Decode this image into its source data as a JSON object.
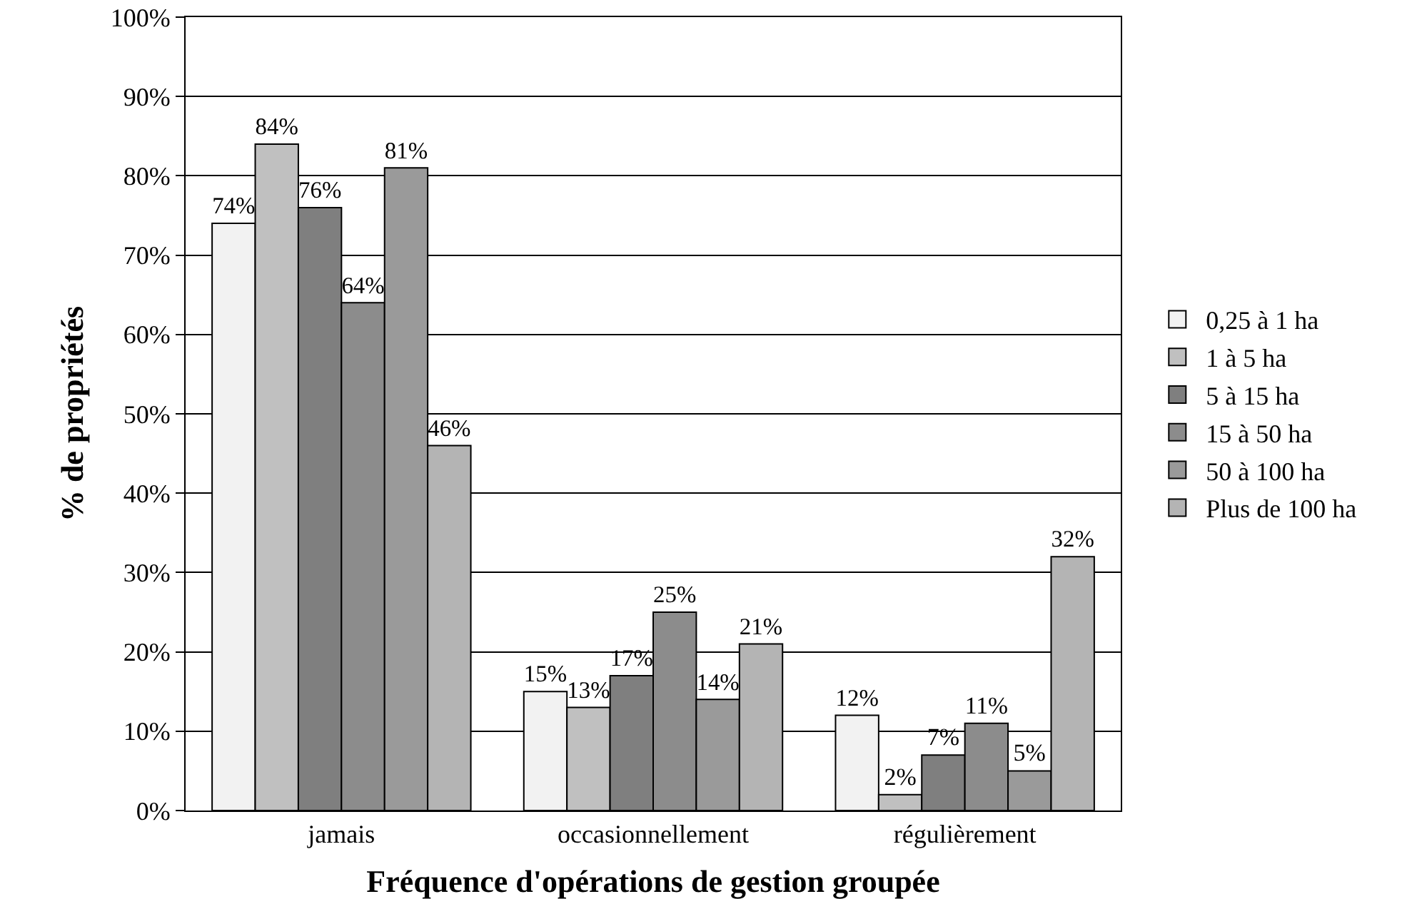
{
  "chart_data": {
    "type": "bar",
    "xlabel": "Fréquence d'opérations de gestion groupée",
    "ylabel": "% de propriétés",
    "categories": [
      "jamais",
      "occasionnellement",
      "régulièrement"
    ],
    "series": [
      {
        "name": "0,25 à 1 ha",
        "color": "#f2f2f2",
        "values": [
          74,
          15,
          12
        ],
        "value_labels": [
          "74%",
          "15%",
          "12%"
        ]
      },
      {
        "name": "1 à 5 ha",
        "color": "#c0c0c0",
        "values": [
          84,
          13,
          2
        ],
        "value_labels": [
          "84%",
          "13%",
          "2%"
        ]
      },
      {
        "name": "5 à 15 ha",
        "color": "#7f7f7f",
        "values": [
          76,
          17,
          7
        ],
        "value_labels": [
          "76%",
          "17%",
          "7%"
        ]
      },
      {
        "name": "15 à 50 ha",
        "color": "#8c8c8c",
        "values": [
          64,
          25,
          11
        ],
        "value_labels": [
          "64%",
          "25%",
          "11%"
        ]
      },
      {
        "name": "50 à 100 ha",
        "color": "#9a9a9a",
        "values": [
          81,
          14,
          5
        ],
        "value_labels": [
          "81%",
          "14%",
          "5%"
        ]
      },
      {
        "name": "Plus de 100 ha",
        "color": "#b4b4b4",
        "values": [
          46,
          21,
          32
        ],
        "value_labels": [
          "46%",
          "21%",
          "32%"
        ]
      }
    ],
    "ylim": [
      0,
      100
    ],
    "yticks": [
      {
        "value": 0,
        "label": "0%"
      },
      {
        "value": 10,
        "label": "10%"
      },
      {
        "value": 20,
        "label": "20%"
      },
      {
        "value": 30,
        "label": "30%"
      },
      {
        "value": 40,
        "label": "40%"
      },
      {
        "value": 50,
        "label": "50%"
      },
      {
        "value": 60,
        "label": "60%"
      },
      {
        "value": 70,
        "label": "70%"
      },
      {
        "value": 80,
        "label": "80%"
      },
      {
        "value": 90,
        "label": "90%"
      },
      {
        "value": 100,
        "label": "100%"
      }
    ],
    "grid": "y",
    "legend": "right"
  }
}
